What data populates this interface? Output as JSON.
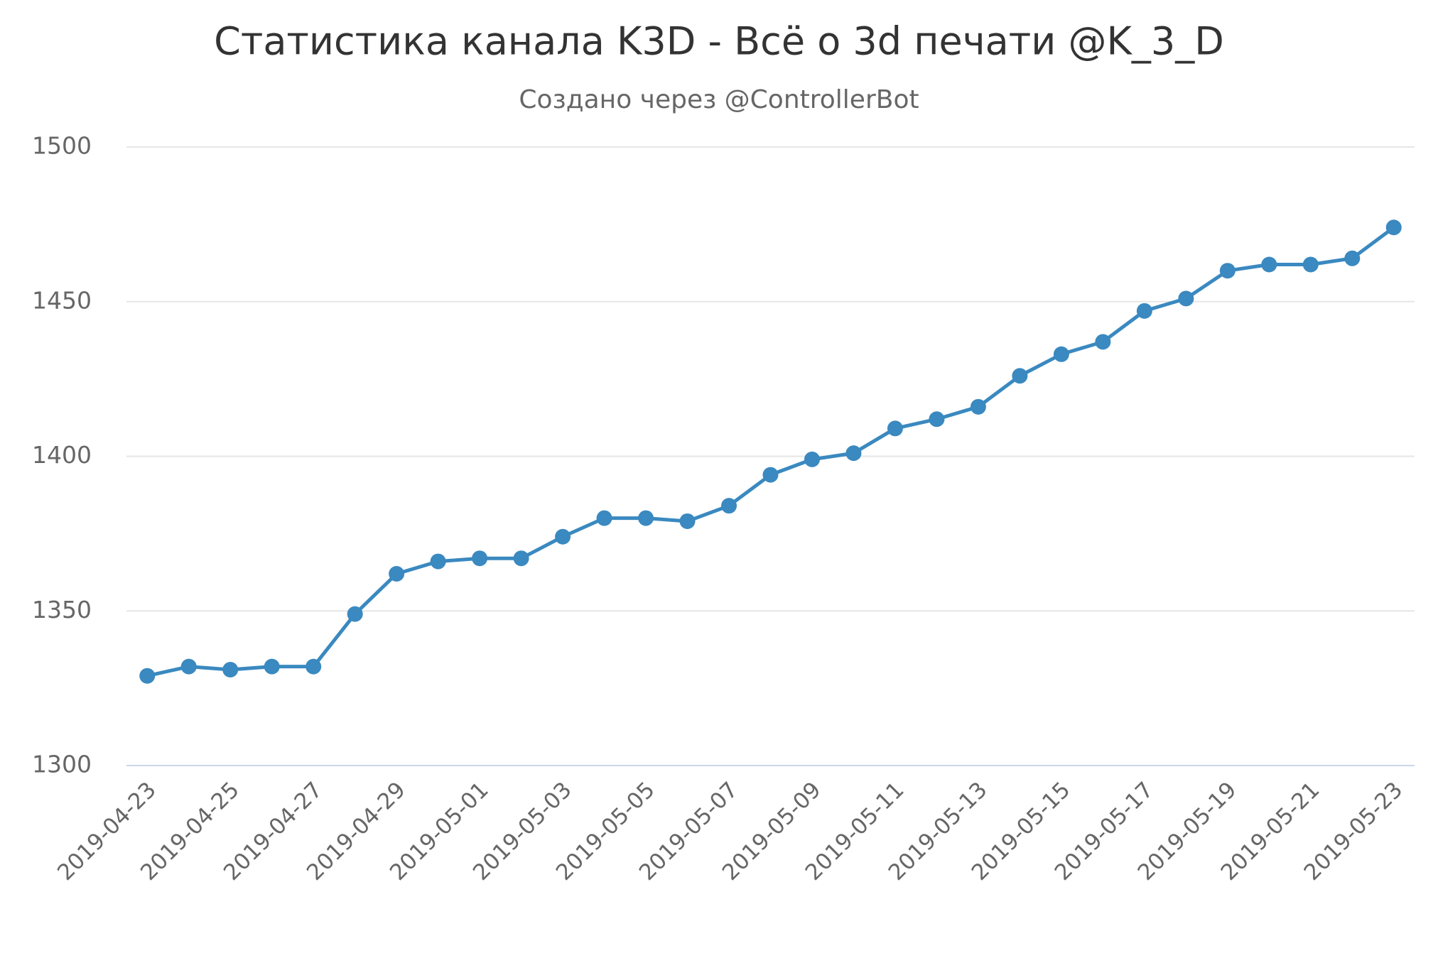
{
  "chart_data": {
    "type": "line",
    "title": "Статистика канала K3D - Всё о 3d печати @K_3_D",
    "subtitle": "Создано через @ControllerBot",
    "categories": [
      "2019-04-23",
      null,
      "2019-04-25",
      null,
      "2019-04-27",
      null,
      "2019-04-29",
      null,
      "2019-05-01",
      null,
      "2019-05-03",
      null,
      "2019-05-05",
      null,
      "2019-05-07",
      null,
      "2019-05-09",
      null,
      "2019-05-11",
      null,
      "2019-05-13",
      null,
      "2019-05-15",
      null,
      "2019-05-17",
      null,
      "2019-05-19",
      null,
      "2019-05-21",
      null,
      "2019-05-23"
    ],
    "series": [
      {
        "color": "#3a89c0",
        "values": [
          1329,
          1332,
          1331,
          1332,
          1332,
          1349,
          1362,
          1366,
          1367,
          1367,
          1374,
          1380,
          1380,
          1379,
          1384,
          1394,
          1399,
          1401,
          1409,
          1412,
          1416,
          1426,
          1433,
          1437,
          1447,
          1451,
          1460,
          1462,
          1462,
          1464,
          1474
        ]
      }
    ],
    "ylim": [
      1300,
      1500
    ],
    "yticks": [
      1300,
      1350,
      1400,
      1450,
      1500
    ],
    "grid": true
  }
}
